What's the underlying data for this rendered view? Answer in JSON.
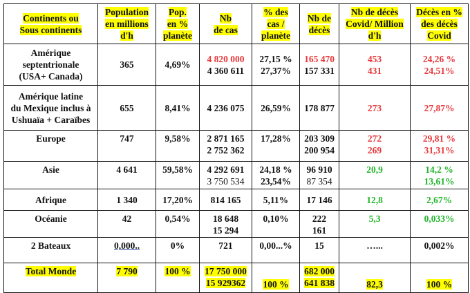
{
  "colors": {
    "red": "#e8383b",
    "green": "#1fb52a",
    "highlight": "#ffff00",
    "text": "#111111"
  },
  "header": [
    [
      "Continents ou",
      "Sous continents"
    ],
    [
      "Population",
      "en millions",
      "d'h"
    ],
    [
      "Pop.",
      "en %",
      "planète"
    ],
    [
      "Nb",
      "de cas"
    ],
    [
      "% des",
      "cas /",
      "planète"
    ],
    [
      "Nb de",
      "décès"
    ],
    [
      "Nb de décès",
      "Covid/ Million",
      "d'h"
    ],
    [
      "Décès en %",
      "des décès",
      "Covid"
    ]
  ],
  "rows": [
    {
      "valign": "middle",
      "cells": [
        [
          {
            "t": "Amérique"
          },
          {
            "t": "septentrionale"
          },
          {
            "t": "(USA+ Canada)"
          }
        ],
        [
          {
            "t": "365"
          }
        ],
        [
          {
            "t": "4,69%"
          }
        ],
        [
          {
            "t": "4 820 000",
            "c": "red"
          },
          {
            "t": "4 360 611"
          }
        ],
        [
          {
            "t": "27,15 %"
          },
          {
            "t": "27,37%"
          }
        ],
        [
          {
            "t": "165 470",
            "c": "red"
          },
          {
            "t": "157 331"
          }
        ],
        [
          {
            "t": "453",
            "c": "red"
          },
          {
            "t": "431",
            "c": "red"
          }
        ],
        [
          {
            "t": "24,26 %",
            "c": "red"
          },
          {
            "t": "24,51%",
            "c": "red"
          }
        ]
      ]
    },
    {
      "valign": "middle",
      "cells": [
        [
          {
            "t": "Amérique latine"
          },
          {
            "t": "du Mexique inclus à"
          },
          {
            "t": "Ushuaïa + Caraïbes"
          }
        ],
        [
          {
            "t": "655"
          }
        ],
        [
          {
            "t": "8,41%"
          }
        ],
        [
          {
            "t": "4 236 075"
          }
        ],
        [
          {
            "t": "26,59%"
          }
        ],
        [
          {
            "t": "178 877"
          }
        ],
        [
          {
            "t": "273",
            "c": "red"
          }
        ],
        [
          {
            "t": "27,87%",
            "c": "red"
          }
        ]
      ]
    },
    {
      "valign": "top",
      "cells": [
        [
          {
            "t": "Europe"
          }
        ],
        [
          {
            "t": "747"
          }
        ],
        [
          {
            "t": "9,58%"
          }
        ],
        [
          {
            "t": "2 871 165"
          },
          {
            "t": "2 752 362"
          }
        ],
        [
          {
            "t": "17,28%"
          }
        ],
        [
          {
            "t": "203 309"
          },
          {
            "t": "200 954"
          }
        ],
        [
          {
            "t": "272",
            "c": "red"
          },
          {
            "t": "269",
            "c": "red"
          }
        ],
        [
          {
            "t": "29,81 %",
            "c": "red"
          },
          {
            "t": "31,31%",
            "c": "red"
          }
        ]
      ]
    },
    {
      "valign": "top",
      "cells": [
        [
          {
            "t": "Asie"
          }
        ],
        [
          {
            "t": "4 641"
          }
        ],
        [
          {
            "t": "59,58%"
          }
        ],
        [
          {
            "t": "4 292 691"
          },
          {
            "t": "3 750 534",
            "w": "normal"
          }
        ],
        [
          {
            "t": "24,18 %"
          },
          {
            "t": "23,54%"
          }
        ],
        [
          {
            "t": "96 910"
          },
          {
            "t": "87 354",
            "w": "normal"
          }
        ],
        [
          {
            "t": "20,9",
            "c": "green"
          }
        ],
        [
          {
            "t": "14,2 %",
            "c": "green"
          },
          {
            "t": "13,61%",
            "c": "green"
          }
        ]
      ]
    },
    {
      "valign": "middle",
      "cells": [
        [
          {
            "t": "Afrique"
          }
        ],
        [
          {
            "t": "1 340"
          }
        ],
        [
          {
            "t": "17,20%"
          }
        ],
        [
          {
            "t": "814 165"
          }
        ],
        [
          {
            "t": "5,11%"
          }
        ],
        [
          {
            "t": "17 146"
          }
        ],
        [
          {
            "t": "12,8",
            "c": "green"
          }
        ],
        [
          {
            "t": "2,67%",
            "c": "green"
          }
        ]
      ]
    },
    {
      "valign": "top",
      "cells": [
        [
          {
            "t": "Océanie"
          }
        ],
        [
          {
            "t": "42"
          }
        ],
        [
          {
            "t": "0,54%"
          }
        ],
        [
          {
            "t": "18 648"
          },
          {
            "t": "15 294"
          }
        ],
        [
          {
            "t": "0,10%"
          }
        ],
        [
          {
            "t": "222"
          },
          {
            "t": "161"
          }
        ],
        [
          {
            "t": "5,3",
            "c": "green"
          }
        ],
        [
          {
            "t": "0,033%",
            "c": "green"
          }
        ]
      ]
    },
    {
      "valign": "top",
      "cells": [
        [
          {
            "t": "2 Bateaux"
          }
        ],
        [
          {
            "t": "0,000..",
            "u": "ulblue"
          }
        ],
        [
          {
            "t": "0%"
          }
        ],
        [
          {
            "t": "721"
          }
        ],
        [
          {
            "t": "0,00...%"
          }
        ],
        [
          {
            "t": "15"
          }
        ],
        [
          {
            "t": "…..."
          }
        ],
        [
          {
            "t": "0,002%"
          }
        ]
      ]
    },
    {
      "valign": "top",
      "highlight": true,
      "cells": [
        [
          {
            "t": "Total Monde"
          }
        ],
        [
          {
            "t": "7 790"
          }
        ],
        [
          {
            "t": "100 %"
          }
        ],
        [
          {
            "t": "17 750 000"
          },
          {
            "t": "15 929362"
          }
        ],
        [
          {
            "t": "100 %",
            "v": "bottom"
          }
        ],
        [
          {
            "t": "682 000"
          },
          {
            "t": "641 838"
          }
        ],
        [
          {
            "t": "82,3",
            "v": "bottom"
          }
        ],
        [
          {
            "t": "100 %",
            "v": "bottom"
          }
        ]
      ]
    }
  ]
}
